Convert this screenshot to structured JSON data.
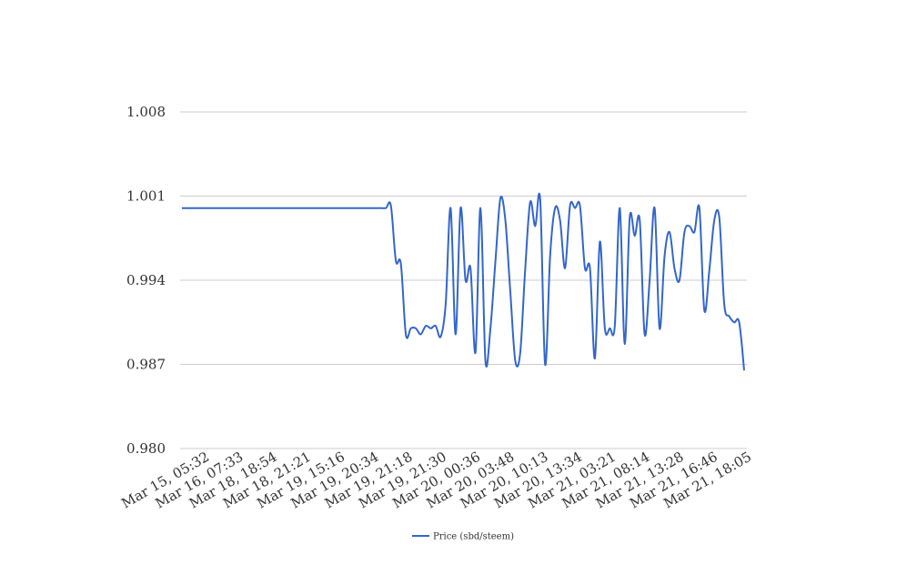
{
  "chart_data": {
    "type": "line",
    "ylim": [
      0.98,
      1.008
    ],
    "yticks": [
      "1.008",
      "1.001",
      "0.994",
      "0.987",
      "0.980"
    ],
    "xticks": [
      "Mar 15, 05:32",
      "Mar 16, 07:33",
      "Mar 18, 18:54",
      "Mar 18, 21:21",
      "Mar 19, 15:16",
      "Mar 19, 20:34",
      "Mar 19, 21:18",
      "Mar 19, 21:30",
      "Mar 20, 00:36",
      "Mar 20, 03:48",
      "Mar 20, 10:13",
      "Mar 20, 13:34",
      "Mar 21, 03:21",
      "Mar 21, 08:14",
      "Mar 21, 13:28",
      "Mar 21, 16:46",
      "Mar 21, 18:05"
    ],
    "grid": true,
    "legend_position": "bottom",
    "series": [
      {
        "name": "Price (sbd/steem)",
        "color": "#3366cc",
        "values": [
          1.0,
          1.0,
          1.0,
          1.0,
          1.0,
          1.0,
          1.0,
          1.0,
          1.0,
          1.0,
          1.0,
          1.0,
          1.0,
          1.0,
          1.0,
          1.0,
          1.0,
          1.0,
          1.0,
          1.0,
          1.0,
          1.0,
          1.0,
          1.0,
          1.0,
          1.0,
          1.0,
          1.0,
          1.0,
          1.0,
          1.0,
          1.0,
          1.0,
          1.0,
          1.0,
          1.0,
          1.0,
          1.0,
          1.0,
          1.0,
          1.0,
          1.0,
          1.0002,
          0.9956,
          0.9954,
          0.9895,
          0.99,
          0.99,
          0.9895,
          0.9902,
          0.99,
          0.9902,
          0.9893,
          0.992,
          1.0,
          0.9895,
          1.0,
          0.994,
          0.995,
          0.988,
          1.0,
          0.9873,
          0.99,
          0.9955,
          1.0008,
          0.999,
          0.993,
          0.9873,
          0.988,
          0.995,
          1.0005,
          0.9985,
          1.0007,
          0.987,
          0.996,
          1.0,
          0.999,
          0.995,
          1.0002,
          1.0,
          1.0002,
          0.995,
          0.995,
          0.9875,
          0.9972,
          0.99,
          0.99,
          0.9902,
          1.0,
          0.9887,
          0.9992,
          0.9977,
          0.999,
          0.9895,
          0.994,
          1.0,
          0.99,
          0.996,
          0.998,
          0.995,
          0.994,
          0.998,
          0.9985,
          0.998,
          1.0,
          0.9915,
          0.9948,
          0.999,
          0.9992,
          0.992,
          0.991,
          0.9905,
          0.9905,
          0.9865
        ]
      }
    ]
  }
}
